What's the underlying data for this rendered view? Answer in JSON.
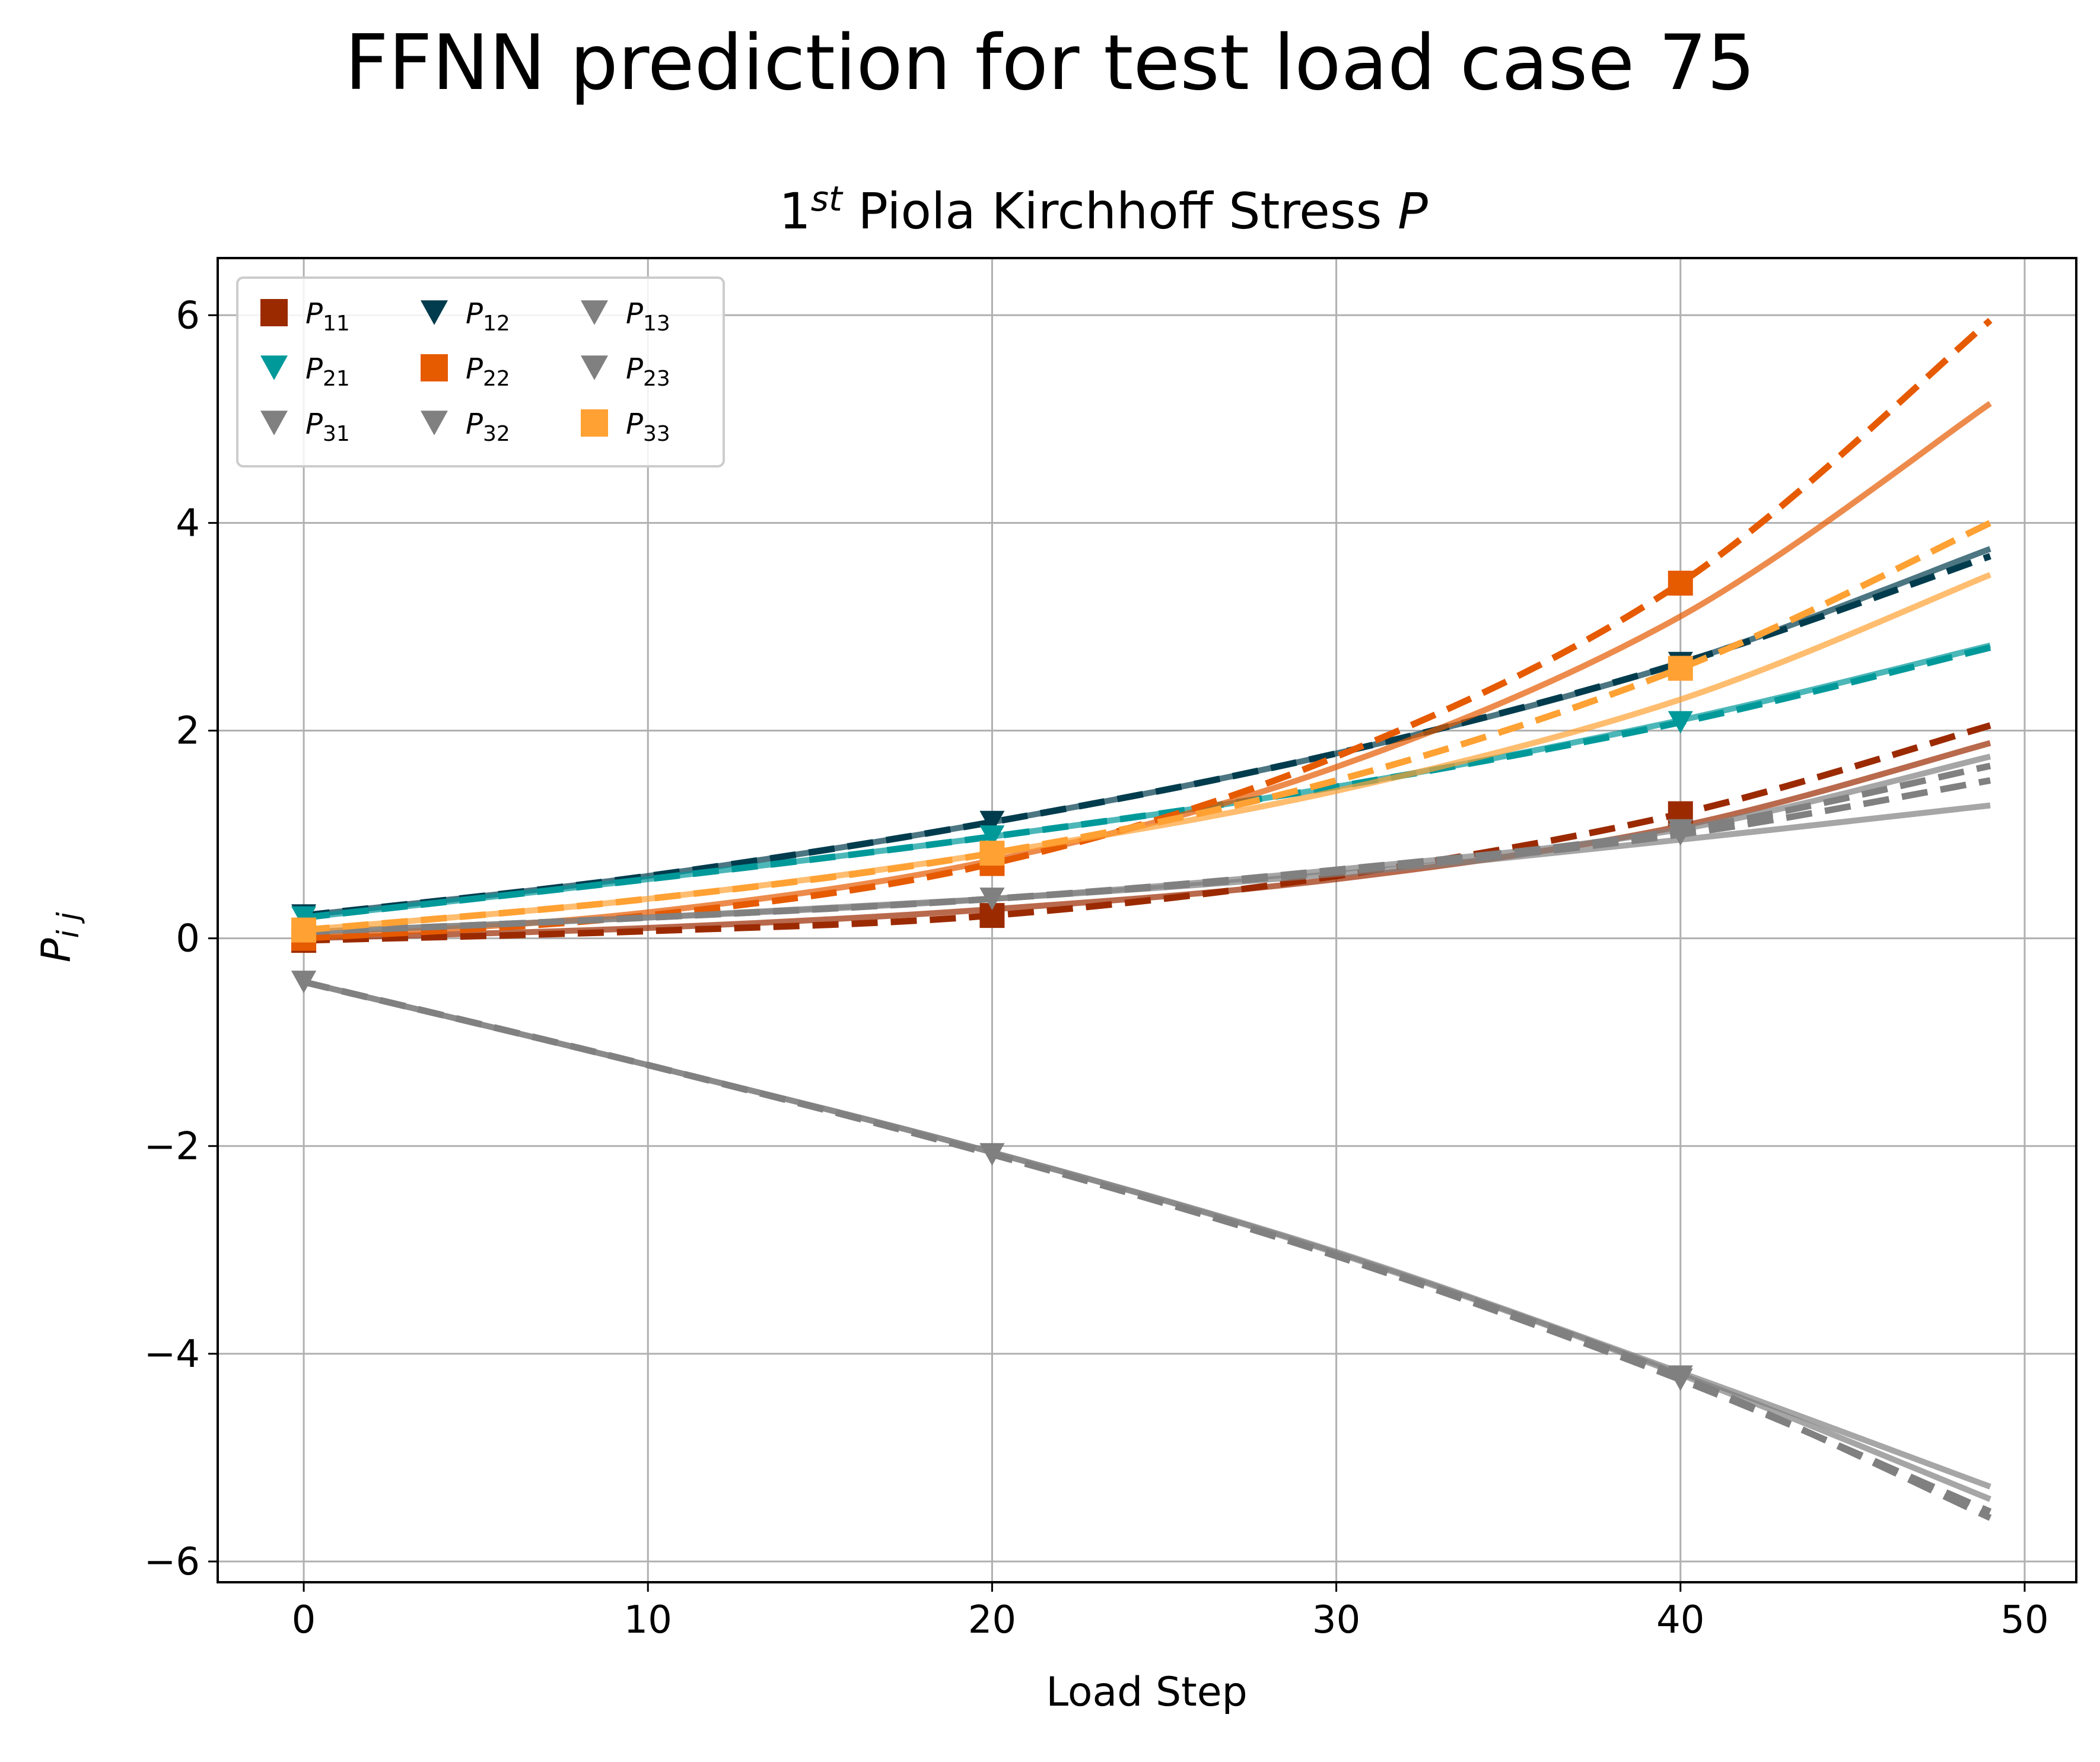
{
  "figure": {
    "suptitle": "FFNN prediction for test load case 75"
  },
  "chart_data": {
    "type": "line",
    "title": "1st Piola Kirchhoff Stress P",
    "title_parts": {
      "number": "1",
      "superscript": "st",
      "text": " Piola Kirchhoff Stress ",
      "symbol": "P"
    },
    "xlabel": "Load Step",
    "ylabel": "P",
    "ylabel_subscript": "i j",
    "xlim": [
      -2.5,
      51.5
    ],
    "ylim": [
      -6.2,
      6.55
    ],
    "xticks": [
      0,
      10,
      20,
      30,
      40,
      50
    ],
    "yticks": [
      -6,
      -4,
      -2,
      0,
      2,
      4,
      6
    ],
    "ytick_labels": [
      "−6",
      "−4",
      "−2",
      "0",
      "2",
      "4",
      "6"
    ],
    "grid": true,
    "legend_placement": "top-left",
    "legend_columns": 3,
    "line_styles": {
      "reference": "dashed",
      "prediction": "solid"
    },
    "marker_x": [
      0,
      20,
      40
    ],
    "series": [
      {
        "name": "P",
        "sub": "11",
        "color": "#9b2a00",
        "marker": "square",
        "x": [
          0,
          10,
          20,
          30,
          40,
          49
        ],
        "reference": [
          -0.02,
          0.07,
          0.22,
          0.6,
          1.2,
          2.05
        ],
        "prediction": [
          0.0,
          0.1,
          0.28,
          0.57,
          1.08,
          1.88
        ]
      },
      {
        "name": "P",
        "sub": "12",
        "color": "#003c4d",
        "marker": "triangle",
        "x": [
          0,
          10,
          20,
          30,
          40,
          49
        ],
        "reference": [
          0.22,
          0.6,
          1.12,
          1.78,
          2.65,
          3.68
        ],
        "prediction": [
          0.22,
          0.6,
          1.12,
          1.78,
          2.65,
          3.75
        ]
      },
      {
        "name": "P",
        "sub": "13",
        "color": "#808080",
        "marker": "triangle",
        "x": [
          0,
          10,
          20,
          30,
          40,
          49
        ],
        "reference": [
          0.06,
          0.2,
          0.38,
          0.64,
          1.0,
          1.52
        ],
        "prediction": [
          0.06,
          0.2,
          0.38,
          0.62,
          0.95,
          1.28
        ]
      },
      {
        "name": "P",
        "sub": "21",
        "color": "#00999a",
        "marker": "triangle",
        "x": [
          0,
          10,
          20,
          30,
          40,
          49
        ],
        "reference": [
          0.2,
          0.57,
          0.98,
          1.46,
          2.08,
          2.8
        ],
        "prediction": [
          0.2,
          0.57,
          0.98,
          1.46,
          2.1,
          2.82
        ]
      },
      {
        "name": "P",
        "sub": "22",
        "color": "#e65a00",
        "marker": "square",
        "x": [
          0,
          10,
          20,
          30,
          40,
          49
        ],
        "reference": [
          0.0,
          0.22,
          0.72,
          1.75,
          3.42,
          5.95
        ],
        "prediction": [
          0.0,
          0.25,
          0.75,
          1.65,
          3.1,
          5.15
        ]
      },
      {
        "name": "P",
        "sub": "23",
        "color": "#808080",
        "marker": "triangle",
        "x": [
          0,
          10,
          20,
          30,
          40,
          49
        ],
        "reference": [
          0.06,
          0.2,
          0.38,
          0.66,
          1.04,
          1.66
        ],
        "prediction": [
          0.06,
          0.2,
          0.38,
          0.66,
          1.05,
          1.75
        ]
      },
      {
        "name": "P",
        "sub": "31",
        "color": "#808080",
        "marker": "triangle",
        "x": [
          0,
          10,
          20,
          30,
          40,
          49
        ],
        "reference": [
          -0.42,
          -1.22,
          -2.08,
          -3.05,
          -4.22,
          -5.58
        ],
        "prediction": [
          -0.42,
          -1.22,
          -2.06,
          -3.02,
          -4.18,
          -5.28
        ]
      },
      {
        "name": "P",
        "sub": "32",
        "color": "#808080",
        "marker": "triangle",
        "x": [
          0,
          10,
          20,
          30,
          40,
          49
        ],
        "reference": [
          -0.42,
          -1.22,
          -2.08,
          -3.06,
          -4.25,
          -5.52
        ],
        "prediction": [
          -0.42,
          -1.22,
          -2.06,
          -3.03,
          -4.2,
          -5.4
        ]
      },
      {
        "name": "P",
        "sub": "33",
        "color": "#ffa133",
        "marker": "square",
        "x": [
          0,
          10,
          20,
          30,
          40,
          49
        ],
        "reference": [
          0.08,
          0.38,
          0.82,
          1.52,
          2.6,
          4.0
        ],
        "prediction": [
          0.08,
          0.38,
          0.82,
          1.42,
          2.3,
          3.5
        ]
      }
    ]
  }
}
